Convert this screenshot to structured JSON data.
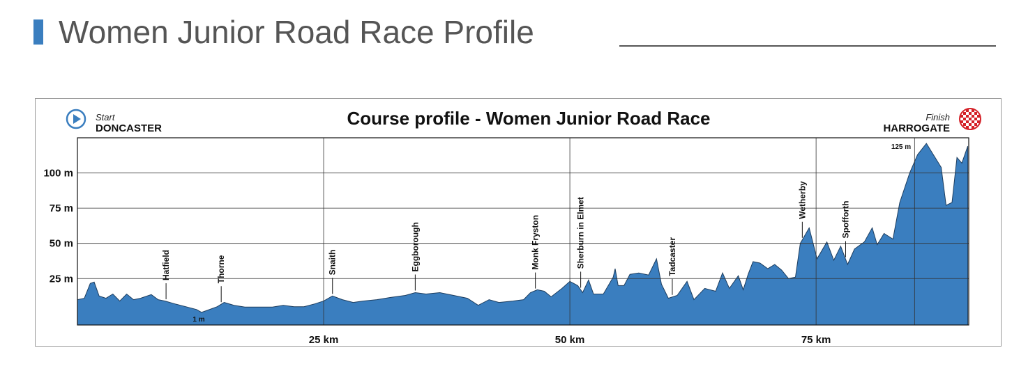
{
  "chart_data": {
    "type": "area",
    "page_title": "Women Junior Road Race Profile",
    "title": "Course profile - Women Junior Road Race",
    "start_label": "Start",
    "start_place": "DONCASTER",
    "finish_label": "Finish",
    "finish_place": "HARROGATE",
    "color": "#3a7ebf",
    "line_color": "#1d3d5e",
    "x": [
      0,
      0.7,
      1.3,
      1.7,
      2.2,
      2.9,
      3.6,
      4.3,
      5.0,
      5.7,
      6.4,
      7.5,
      8.2,
      8.9,
      9.9,
      11.0,
      12.1,
      12.6,
      13.1,
      14.2,
      14.9,
      15.9,
      17.0,
      18.4,
      19.8,
      20.9,
      22.0,
      23.0,
      24.1,
      25.0,
      25.9,
      26.9,
      28.0,
      29.0,
      30.4,
      31.8,
      33.3,
      34.3,
      35.4,
      36.8,
      38.2,
      39.6,
      40.7,
      41.8,
      42.8,
      44.2,
      45.3,
      46.0,
      46.7,
      47.4,
      48.1,
      49.2,
      50.0,
      50.8,
      51.3,
      51.9,
      52.4,
      53.4,
      54.4,
      54.6,
      54.9,
      55.5,
      56.1,
      57.0,
      58.0,
      58.8,
      59.3,
      60.0,
      60.9,
      61.9,
      62.6,
      63.7,
      64.8,
      65.5,
      66.2,
      67.1,
      67.6,
      68.1,
      68.6,
      69.3,
      70.1,
      70.8,
      71.5,
      72.2,
      72.9,
      73.4,
      74.3,
      75.1,
      76.1,
      76.8,
      77.5,
      78.2,
      78.9,
      79.9,
      80.7,
      81.2,
      81.9,
      82.8,
      83.5,
      84.5,
      85.3,
      86.2,
      87.7,
      88.2,
      88.8,
      89.3,
      89.8,
      90.4
    ],
    "values": [
      10,
      11,
      21.5,
      22.5,
      12.6,
      11,
      14,
      9,
      14,
      10,
      11,
      13.6,
      10,
      9,
      7,
      5,
      3,
      1,
      2.2,
      5,
      8,
      6,
      4.7,
      4.7,
      4.7,
      6,
      5,
      5,
      7,
      9,
      12.6,
      10,
      8,
      9,
      10,
      11.6,
      13,
      15,
      14,
      15,
      13,
      11,
      6,
      10,
      8,
      9,
      10,
      15,
      17,
      16,
      12,
      18,
      23,
      20,
      15,
      24,
      14,
      14,
      26,
      32,
      20,
      20,
      28,
      29,
      27.5,
      39,
      21,
      11,
      13,
      23,
      10,
      18,
      16,
      29,
      18,
      27,
      17,
      28,
      37,
      36,
      32,
      35,
      31,
      25,
      26,
      50,
      61,
      39,
      51,
      38,
      48,
      35,
      46,
      51,
      61,
      49,
      57,
      53,
      79,
      100,
      113,
      121,
      104,
      77,
      79,
      111,
      107,
      119
    ],
    "xlim": [
      0,
      90.5
    ],
    "ylim": [
      -8,
      125
    ],
    "xticks": [
      {
        "value": 25,
        "label": "25 km"
      },
      {
        "value": 50,
        "label": "50 km"
      },
      {
        "value": 75,
        "label": "75 km"
      },
      {
        "value": 85,
        "label": null
      }
    ],
    "yticks": [
      {
        "value": 25,
        "label": "25 m"
      },
      {
        "value": 50,
        "label": "50 m"
      },
      {
        "value": 75,
        "label": "75 m"
      },
      {
        "value": 100,
        "label": "100 m"
      }
    ],
    "grid": true,
    "places": [
      {
        "name": "Hatfield",
        "km": 9.0
      },
      {
        "name": "Thorne",
        "km": 14.6
      },
      {
        "name": "Snaith",
        "km": 25.9
      },
      {
        "name": "Eggborough",
        "km": 34.3
      },
      {
        "name": "Monk Fryston",
        "km": 46.5
      },
      {
        "name": "Sherburn in Elmet",
        "km": 51.1
      },
      {
        "name": "Tadcaster",
        "km": 60.4
      },
      {
        "name": "Wetherby",
        "km": 73.6
      },
      {
        "name": "Spofforth",
        "km": 78.0
      }
    ],
    "annotations": [
      "1 m",
      "125 m"
    ]
  }
}
